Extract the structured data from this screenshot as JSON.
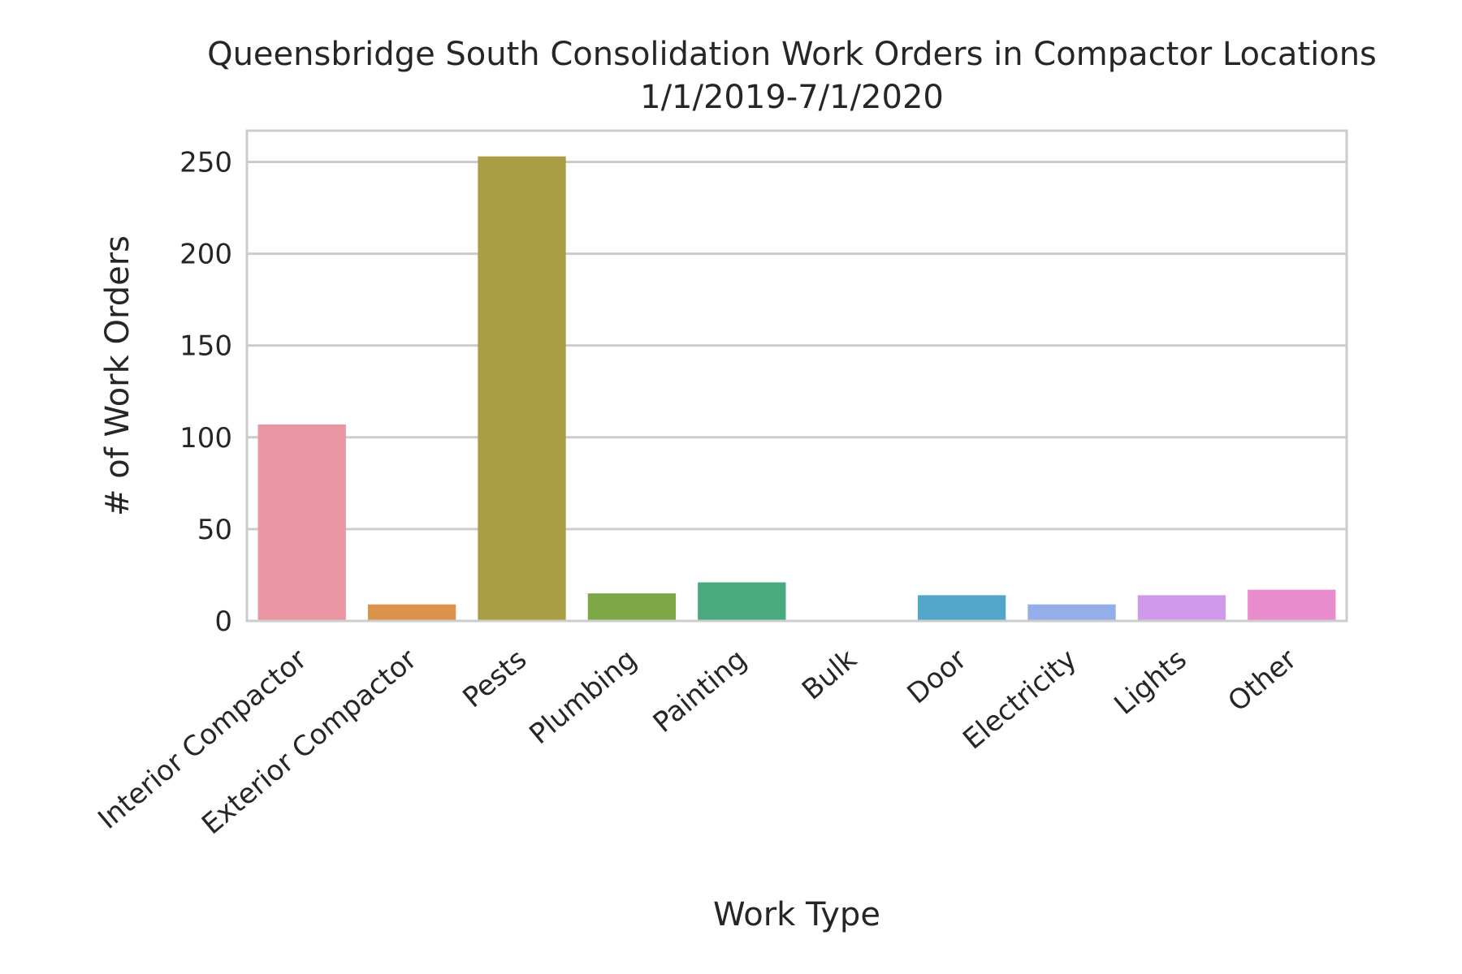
{
  "chart_data": {
    "type": "bar",
    "title": "Queensbridge South Consolidation Work Orders in Compactor Locations",
    "subtitle": "1/1/2019-7/1/2020",
    "xlabel": "Work Type",
    "ylabel": "# of Work Orders",
    "categories": [
      "Interior Compactor",
      "Exterior Compactor",
      "Pests",
      "Plumbing",
      "Painting",
      "Bulk",
      "Door",
      "Electricity",
      "Lights",
      "Other"
    ],
    "values": [
      107,
      9,
      253,
      15,
      21,
      0,
      14,
      9,
      14,
      17
    ],
    "colors": [
      "#ea96a3",
      "#dc924b",
      "#a99d46",
      "#7ea845",
      "#49aa7d",
      "#4da9a6",
      "#51a6c9",
      "#93aee9",
      "#cf9ae9",
      "#e98dce"
    ],
    "yticks": [
      0,
      50,
      100,
      150,
      200,
      250
    ],
    "ylim": [
      0,
      267
    ],
    "grid": true,
    "gridColor": "#cccccc",
    "legend": "none"
  }
}
